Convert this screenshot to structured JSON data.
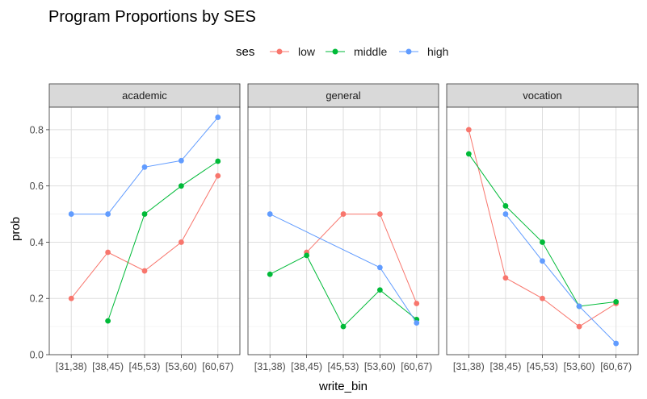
{
  "chart_data": {
    "type": "line",
    "title": "Program Proportions by SES",
    "xlabel": "write_bin",
    "ylabel": "prob",
    "ylim": [
      0.0,
      0.88
    ],
    "yticks": [
      0.0,
      0.2,
      0.4,
      0.6,
      0.8
    ],
    "ytick_labels": [
      "0.0",
      "0.2",
      "0.4",
      "0.6",
      "0.8"
    ],
    "categories": [
      "[31,38)",
      "[38,45)",
      "[45,53)",
      "[53,60)",
      "[60,67)"
    ],
    "legend": {
      "title": "ses",
      "position": "top"
    },
    "grid": true,
    "series_styles": [
      {
        "name": "low",
        "color": "#F8766D"
      },
      {
        "name": "middle",
        "color": "#00BA38"
      },
      {
        "name": "high",
        "color": "#619CFF"
      }
    ],
    "panels": [
      {
        "label": "academic",
        "series": [
          {
            "name": "low",
            "values": [
              0.2,
              0.364,
              0.298,
              0.4,
              0.636
            ]
          },
          {
            "name": "middle",
            "values": [
              null,
              0.12,
              0.5,
              0.6,
              0.688
            ]
          },
          {
            "name": "high",
            "values": [
              0.5,
              0.5,
              0.667,
              0.69,
              0.844
            ]
          }
        ]
      },
      {
        "label": "general",
        "series": [
          {
            "name": "low",
            "values": [
              null,
              0.364,
              0.5,
              0.5,
              0.182
            ]
          },
          {
            "name": "middle",
            "values": [
              0.286,
              0.353,
              0.1,
              0.23,
              0.125
            ]
          },
          {
            "name": "high",
            "values": [
              0.5,
              null,
              null,
              0.31,
              0.113
            ]
          }
        ]
      },
      {
        "label": "vocation",
        "series": [
          {
            "name": "low",
            "values": [
              0.8,
              0.273,
              0.2,
              0.1,
              0.182
            ]
          },
          {
            "name": "middle",
            "values": [
              0.714,
              0.529,
              0.4,
              0.172,
              0.188
            ]
          },
          {
            "name": "high",
            "values": [
              null,
              0.5,
              0.333,
              0.172,
              0.04
            ]
          }
        ]
      }
    ]
  }
}
